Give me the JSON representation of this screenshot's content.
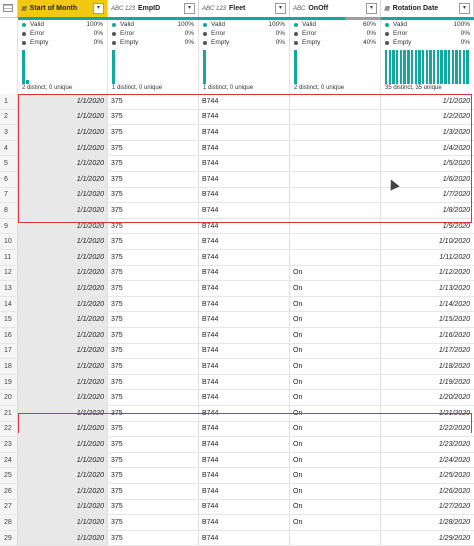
{
  "columns": [
    {
      "type_icon": "",
      "name": "Start of Month",
      "active": true
    },
    {
      "type_icon": "ABC 123",
      "name": "EmpID"
    },
    {
      "type_icon": "ABC 123",
      "name": "Fleet"
    },
    {
      "type_icon": "ABC",
      "name": "OnOff"
    },
    {
      "type_icon": "",
      "name": "Rotation Date"
    }
  ],
  "profiles": [
    {
      "valid_label": "Valid",
      "valid": "100%",
      "error_label": "Error",
      "error": "0%",
      "empty_label": "Empty",
      "empty": "0%",
      "distinct": "2 distinct, 0 unique"
    },
    {
      "valid_label": "Valid",
      "valid": "100%",
      "error_label": "Error",
      "error": "0%",
      "empty_label": "Empty",
      "empty": "0%",
      "distinct": "1 distinct, 0 unique"
    },
    {
      "valid_label": "Valid",
      "valid": "100%",
      "error_label": "Error",
      "error": "0%",
      "empty_label": "Empty",
      "empty": "0%",
      "distinct": "1 distinct, 0 unique"
    },
    {
      "valid_label": "Valid",
      "valid": "60%",
      "error_label": "Error",
      "error": "0%",
      "empty_label": "Empty",
      "empty": "40%",
      "distinct": "2 distinct, 0 unique"
    },
    {
      "valid_label": "Valid",
      "valid": "100%",
      "error_label": "Error",
      "error": "0%",
      "empty_label": "Empty",
      "empty": "0%",
      "distinct": "35 distinct, 35 unique"
    }
  ],
  "colors": {
    "valid": "#13a89e",
    "error": "#555555",
    "empty": "#555555"
  },
  "rows": [
    {
      "n": "1",
      "som": "1/1/2020",
      "emp": "375",
      "fleet": "B744",
      "onoff": "",
      "rot": "1/1/2020"
    },
    {
      "n": "2",
      "som": "1/1/2020",
      "emp": "375",
      "fleet": "B744",
      "onoff": "",
      "rot": "1/2/2020"
    },
    {
      "n": "3",
      "som": "1/1/2020",
      "emp": "375",
      "fleet": "B744",
      "onoff": "",
      "rot": "1/3/2020"
    },
    {
      "n": "4",
      "som": "1/1/2020",
      "emp": "375",
      "fleet": "B744",
      "onoff": "",
      "rot": "1/4/2020"
    },
    {
      "n": "5",
      "som": "1/1/2020",
      "emp": "375",
      "fleet": "B744",
      "onoff": "",
      "rot": "1/5/2020"
    },
    {
      "n": "6",
      "som": "1/1/2020",
      "emp": "375",
      "fleet": "B744",
      "onoff": "",
      "rot": "1/6/2020"
    },
    {
      "n": "7",
      "som": "1/1/2020",
      "emp": "375",
      "fleet": "B744",
      "onoff": "",
      "rot": "1/7/2020"
    },
    {
      "n": "8",
      "som": "1/1/2020",
      "emp": "375",
      "fleet": "B744",
      "onoff": "",
      "rot": "1/8/2020"
    },
    {
      "n": "9",
      "som": "1/1/2020",
      "emp": "375",
      "fleet": "B744",
      "onoff": "",
      "rot": "1/9/2020"
    },
    {
      "n": "10",
      "som": "1/1/2020",
      "emp": "375",
      "fleet": "B744",
      "onoff": "",
      "rot": "1/10/2020"
    },
    {
      "n": "11",
      "som": "1/1/2020",
      "emp": "375",
      "fleet": "B744",
      "onoff": "",
      "rot": "1/11/2020"
    },
    {
      "n": "12",
      "som": "1/1/2020",
      "emp": "375",
      "fleet": "B744",
      "onoff": "On",
      "rot": "1/12/2020"
    },
    {
      "n": "13",
      "som": "1/1/2020",
      "emp": "375",
      "fleet": "B744",
      "onoff": "On",
      "rot": "1/13/2020"
    },
    {
      "n": "14",
      "som": "1/1/2020",
      "emp": "375",
      "fleet": "B744",
      "onoff": "On",
      "rot": "1/14/2020"
    },
    {
      "n": "15",
      "som": "1/1/2020",
      "emp": "375",
      "fleet": "B744",
      "onoff": "On",
      "rot": "1/15/2020"
    },
    {
      "n": "16",
      "som": "1/1/2020",
      "emp": "375",
      "fleet": "B744",
      "onoff": "On",
      "rot": "1/16/2020"
    },
    {
      "n": "17",
      "som": "1/1/2020",
      "emp": "375",
      "fleet": "B744",
      "onoff": "On",
      "rot": "1/17/2020"
    },
    {
      "n": "18",
      "som": "1/1/2020",
      "emp": "375",
      "fleet": "B744",
      "onoff": "On",
      "rot": "1/18/2020"
    },
    {
      "n": "19",
      "som": "1/1/2020",
      "emp": "375",
      "fleet": "B744",
      "onoff": "On",
      "rot": "1/19/2020"
    },
    {
      "n": "20",
      "som": "1/1/2020",
      "emp": "375",
      "fleet": "B744",
      "onoff": "On",
      "rot": "1/20/2020"
    },
    {
      "n": "21",
      "som": "1/1/2020",
      "emp": "375",
      "fleet": "B744",
      "onoff": "On",
      "rot": "1/21/2020"
    },
    {
      "n": "22",
      "som": "1/1/2020",
      "emp": "375",
      "fleet": "B744",
      "onoff": "On",
      "rot": "1/22/2020"
    },
    {
      "n": "23",
      "som": "1/1/2020",
      "emp": "375",
      "fleet": "B744",
      "onoff": "On",
      "rot": "1/23/2020"
    },
    {
      "n": "24",
      "som": "1/1/2020",
      "emp": "375",
      "fleet": "B744",
      "onoff": "On",
      "rot": "1/24/2020"
    },
    {
      "n": "25",
      "som": "1/1/2020",
      "emp": "375",
      "fleet": "B744",
      "onoff": "On",
      "rot": "1/25/2020"
    },
    {
      "n": "26",
      "som": "1/1/2020",
      "emp": "375",
      "fleet": "B744",
      "onoff": "On",
      "rot": "1/26/2020"
    },
    {
      "n": "27",
      "som": "1/1/2020",
      "emp": "375",
      "fleet": "B744",
      "onoff": "On",
      "rot": "1/27/2020"
    },
    {
      "n": "28",
      "som": "1/1/2020",
      "emp": "375",
      "fleet": "B744",
      "onoff": "On",
      "rot": "1/28/2020"
    },
    {
      "n": "29",
      "som": "1/1/2020",
      "emp": "375",
      "fleet": "B744",
      "onoff": "",
      "rot": "1/29/2020"
    }
  ]
}
